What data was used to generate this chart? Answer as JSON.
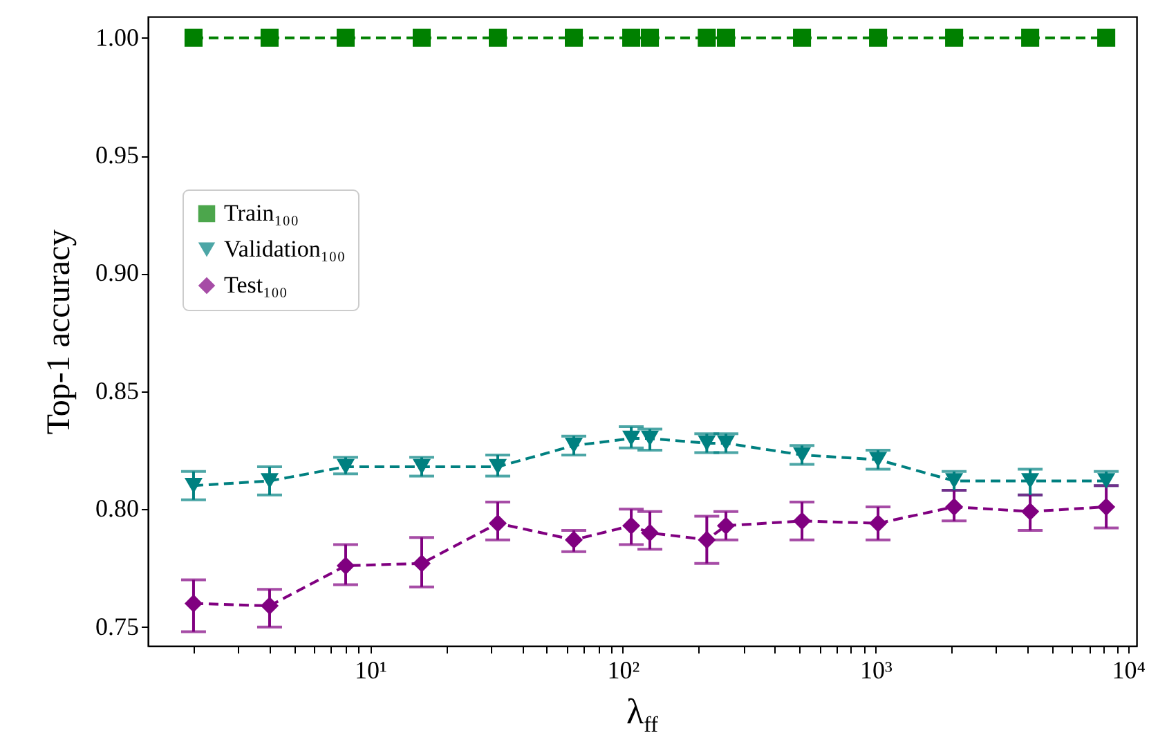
{
  "chart_data": {
    "type": "line",
    "xlabel": "λ$_{ff}$",
    "ylabel": "Top-1 accuracy",
    "log": "x",
    "x": [
      2,
      4,
      8,
      16,
      32,
      64,
      108,
      128,
      215,
      256,
      512,
      1024,
      2048,
      4096,
      8192
    ],
    "series": [
      {
        "name": "Train₁₀₀",
        "color": "#008000",
        "marker": "square",
        "line_style": "dashed",
        "values": [
          1,
          1,
          1,
          1,
          1,
          1,
          1,
          1,
          1,
          1,
          1,
          1,
          1,
          1,
          1
        ]
      },
      {
        "name": "Validation₁₀₀",
        "color": "#008080",
        "marker": "triangle",
        "line_style": "dashed",
        "values": [
          0.81,
          0.812,
          0.818,
          0.818,
          0.818,
          0.827,
          0.83,
          0.83,
          0.828,
          0.828,
          0.823,
          0.821,
          0.812,
          0.812,
          0.812
        ],
        "errors": [
          [
            0.804,
            0.816
          ],
          [
            0.806,
            0.818
          ],
          [
            0.815,
            0.822
          ],
          [
            0.814,
            0.822
          ],
          [
            0.814,
            0.823
          ],
          [
            0.823,
            0.831
          ],
          [
            0.826,
            0.835
          ],
          [
            0.825,
            0.834
          ],
          [
            0.824,
            0.832
          ],
          [
            0.824,
            0.832
          ],
          [
            0.819,
            0.827
          ],
          [
            0.817,
            0.825
          ],
          [
            0.808,
            0.816
          ],
          [
            0.806,
            0.817
          ],
          [
            0.81,
            0.816
          ]
        ]
      },
      {
        "name": "Test₁₀₀",
        "color": "#800080",
        "marker": "diamond",
        "line_style": "dashed",
        "values": [
          0.76,
          0.759,
          0.776,
          0.777,
          0.794,
          0.787,
          0.793,
          0.79,
          0.787,
          0.793,
          0.795,
          0.794,
          0.801,
          0.799,
          0.801
        ],
        "errors": [
          [
            0.748,
            0.77
          ],
          [
            0.75,
            0.766
          ],
          [
            0.768,
            0.785
          ],
          [
            0.767,
            0.788
          ],
          [
            0.787,
            0.803
          ],
          [
            0.782,
            0.791
          ],
          [
            0.785,
            0.8
          ],
          [
            0.783,
            0.799
          ],
          [
            0.777,
            0.797
          ],
          [
            0.787,
            0.799
          ],
          [
            0.787,
            0.803
          ],
          [
            0.787,
            0.801
          ],
          [
            0.795,
            0.808
          ],
          [
            0.791,
            0.806
          ],
          [
            0.792,
            0.81
          ]
        ]
      }
    ],
    "xlim": [
      1.32,
      10800
    ],
    "ylim": [
      0.742,
      1.009
    ],
    "xticks": [
      {
        "value": 2,
        "label": null
      },
      {
        "value": 3,
        "label": null
      },
      {
        "value": 4,
        "label": null
      },
      {
        "value": 5,
        "label": null
      },
      {
        "value": 6,
        "label": null
      },
      {
        "value": 7,
        "label": null
      },
      {
        "value": 8,
        "label": null
      },
      {
        "value": 9,
        "label": null
      },
      {
        "value": 10,
        "label": "10¹"
      },
      {
        "value": 20,
        "label": null
      },
      {
        "value": 30,
        "label": null
      },
      {
        "value": 40,
        "label": null
      },
      {
        "value": 50,
        "label": null
      },
      {
        "value": 60,
        "label": null
      },
      {
        "value": 70,
        "label": null
      },
      {
        "value": 80,
        "label": null
      },
      {
        "value": 90,
        "label": null
      },
      {
        "value": 100,
        "label": "10²"
      },
      {
        "value": 200,
        "label": null
      },
      {
        "value": 300,
        "label": null
      },
      {
        "value": 400,
        "label": null
      },
      {
        "value": 500,
        "label": null
      },
      {
        "value": 600,
        "label": null
      },
      {
        "value": 700,
        "label": null
      },
      {
        "value": 800,
        "label": null
      },
      {
        "value": 900,
        "label": null
      },
      {
        "value": 1000,
        "label": "10³"
      },
      {
        "value": 2000,
        "label": null
      },
      {
        "value": 3000,
        "label": null
      },
      {
        "value": 4000,
        "label": null
      },
      {
        "value": 5000,
        "label": null
      },
      {
        "value": 6000,
        "label": null
      },
      {
        "value": 7000,
        "label": null
      },
      {
        "value": 8000,
        "label": null
      },
      {
        "value": 9000,
        "label": null
      },
      {
        "value": 10000,
        "label": "10⁴"
      }
    ],
    "yticks": [
      {
        "value": 0.75,
        "label": "0.75"
      },
      {
        "value": 0.8,
        "label": "0.80"
      },
      {
        "value": 0.85,
        "label": "0.85"
      },
      {
        "value": 0.9,
        "label": "0.90"
      },
      {
        "value": 0.95,
        "label": "0.95"
      },
      {
        "value": 1,
        "label": "1.00"
      }
    ],
    "grid": false,
    "legend": "left"
  }
}
